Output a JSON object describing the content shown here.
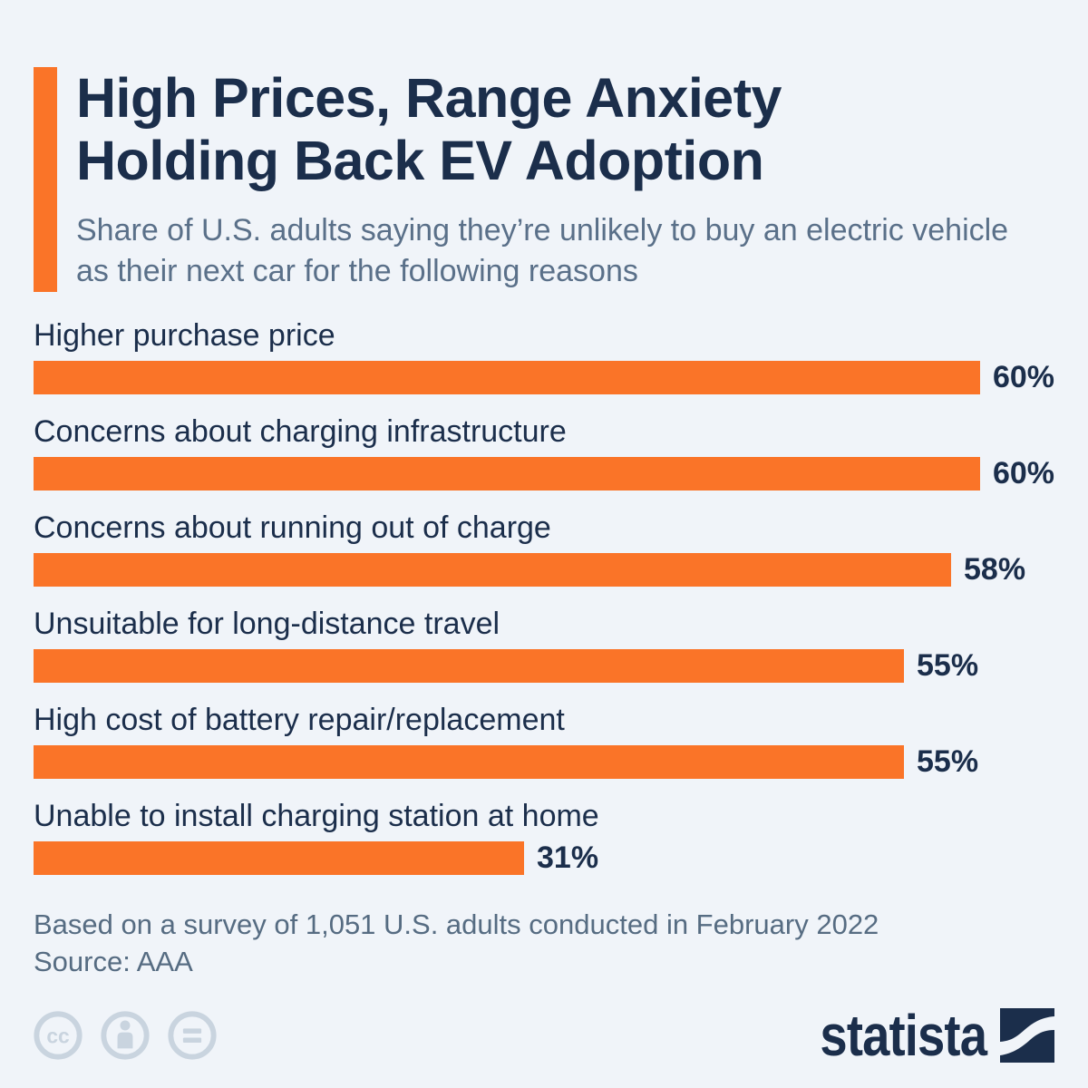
{
  "page": {
    "background_color": "#f0f4f9",
    "accent_color": "#fa7428",
    "navy_color": "#1b2e4b"
  },
  "header": {
    "title_line1": "High Prices, Range Anxiety",
    "title_line2": "Holding Back EV Adoption",
    "subtitle": "Share of U.S. adults saying they’re unlikely to buy an electric vehicle as their next car for the following reasons"
  },
  "chart_data": {
    "type": "bar",
    "orientation": "horizontal",
    "categories": [
      "Higher purchase price",
      "Concerns about charging infrastructure",
      "Concerns about running out of charge",
      "Unsuitable for long-distance travel",
      "High cost of battery repair/replacement",
      "Unable to install charging station at home"
    ],
    "values": [
      60,
      60,
      58,
      55,
      55,
      31
    ],
    "value_labels": [
      "60%",
      "60%",
      "58%",
      "55%",
      "55%",
      "31%"
    ],
    "axis_max": 60,
    "bar_color": "#fa7428",
    "grid": "off",
    "value_label_position": "right-of-bar"
  },
  "footer": {
    "note": "Based on a survey of 1,051 U.S. adults conducted in February 2022",
    "source": "Source: AAA",
    "license": {
      "cc_label": "cc",
      "icon_color": "#c9d4df"
    },
    "brand_name": "statista"
  }
}
